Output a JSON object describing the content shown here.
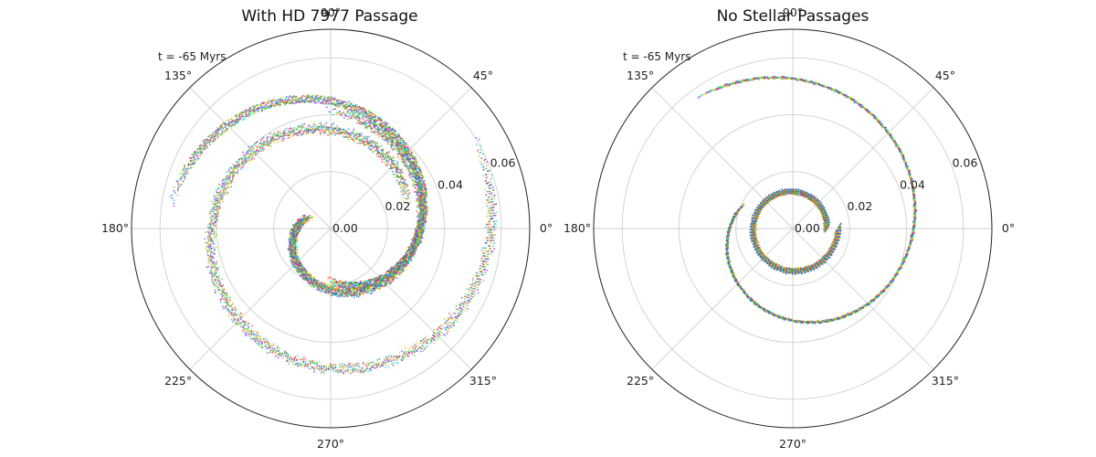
{
  "chart_data": [
    {
      "type": "scatter",
      "projection": "polar",
      "title": "With HD 7977 Passage",
      "annotation": "t = -65 Myrs",
      "angle_ticks": [
        "0°",
        "45°",
        "90°",
        "135°",
        "180°",
        "225°",
        "270°",
        "315°"
      ],
      "radial_ticks": [
        "0.00",
        "0.02",
        "0.04",
        "0.06"
      ],
      "rlim": [
        0,
        0.07
      ],
      "radial_tick_values": [
        0.0,
        0.02,
        0.04,
        0.06
      ],
      "grid": true,
      "colormap": [
        "#ff2a2a",
        "#ff8c00",
        "#e0d000",
        "#66e000",
        "#00d060",
        "#00c8c8",
        "#2a60ff",
        "#7a2ad0",
        "#d020c0"
      ],
      "structures": [
        {
          "name": "inner spiral",
          "r_start": 0.01,
          "r_end": 0.04,
          "theta_start": 160,
          "theta_end": 440
        },
        {
          "name": "outer spiral",
          "r_start": 0.03,
          "r_end": 0.058,
          "theta_start": 30,
          "theta_end": 380
        },
        {
          "name": "perturbed arc",
          "r_start": 0.02,
          "r_end": 0.055,
          "theta_start": 280,
          "theta_end": 520
        }
      ]
    },
    {
      "type": "scatter",
      "projection": "polar",
      "title": "No Stellar Passages",
      "annotation": "t = -65 Myrs",
      "angle_ticks": [
        "0°",
        "45°",
        "90°",
        "135°",
        "180°",
        "225°",
        "270°",
        "315°"
      ],
      "radial_ticks": [
        "0.00",
        "0.02",
        "0.04",
        "0.06"
      ],
      "rlim": [
        0,
        0.07
      ],
      "radial_tick_values": [
        0.0,
        0.02,
        0.04,
        0.06
      ],
      "grid": true,
      "colormap": [
        "#ff2a2a",
        "#ff8c00",
        "#e0d000",
        "#66e000",
        "#00d060",
        "#00c8c8",
        "#2a60ff",
        "#7a2ad0",
        "#d020c0"
      ],
      "structures": [
        {
          "name": "inner ring",
          "r_start": 0.012,
          "r_end": 0.016,
          "theta_start": 0,
          "theta_end": 360
        },
        {
          "name": "outer spiral",
          "r_start": 0.02,
          "r_end": 0.056,
          "theta_start": 160,
          "theta_end": 480
        }
      ]
    }
  ]
}
